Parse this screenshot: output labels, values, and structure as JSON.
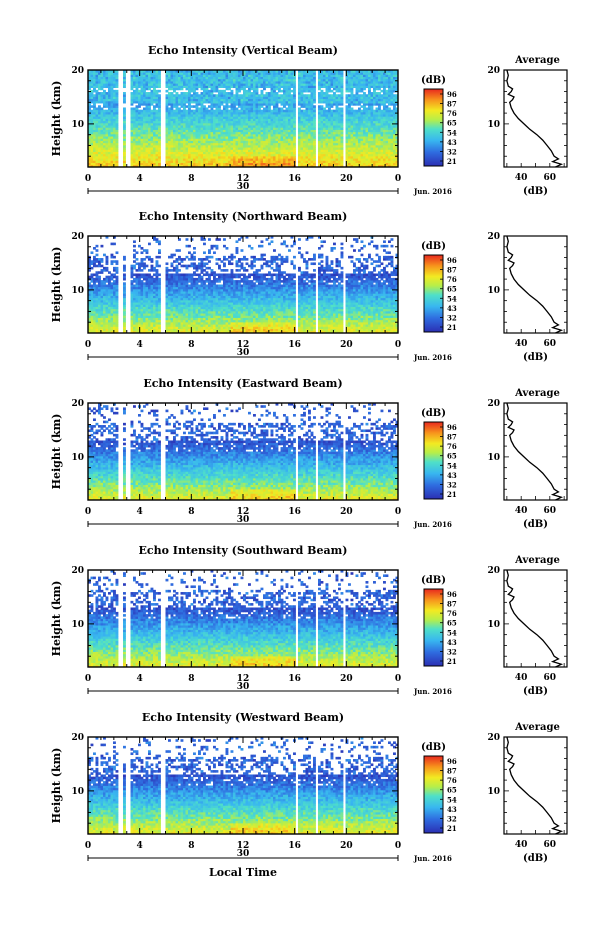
{
  "chart_data": [
    {
      "type": "heatmap",
      "title": "Echo Intensity (Vertical Beam)",
      "ylabel": "Height (km)",
      "xlim": [
        0,
        24
      ],
      "ylim": [
        2,
        20
      ],
      "x_ticks": [
        "0",
        "4",
        "8",
        "12",
        "16",
        "20",
        "0"
      ],
      "y_ticks": [
        "10",
        "20"
      ],
      "date_day": "30",
      "date_month": "Jun. 2016",
      "data_gaps_hours": [
        [
          2.3,
          2.7
        ],
        [
          2.9,
          3.3
        ],
        [
          5.7,
          6.0
        ],
        [
          16.0,
          16.3
        ],
        [
          17.6,
          17.9
        ],
        [
          19.7,
          20.0
        ]
      ],
      "colorbar": {
        "unit": "(dB)",
        "ticks": [
          "96",
          "87",
          "76",
          "65",
          "54",
          "43",
          "32",
          "21"
        ],
        "range": [
          21,
          96
        ]
      },
      "average": {
        "title": "Average",
        "xlabel": "(dB)",
        "x_ticks": [
          "40",
          "60"
        ],
        "y_ticks": [
          "10",
          "20"
        ],
        "xlim": [
          28,
          72
        ]
      }
    },
    {
      "type": "heatmap",
      "title": "Echo Intensity (Northward Beam)",
      "ylabel": "Height (km)",
      "xlim": [
        0,
        24
      ],
      "ylim": [
        2,
        20
      ],
      "x_ticks": [
        "0",
        "4",
        "8",
        "12",
        "16",
        "20",
        "0"
      ],
      "y_ticks": [
        "10",
        "20"
      ],
      "date_day": "30",
      "date_month": "Jun. 2016",
      "data_gaps_hours": [
        [
          2.3,
          2.7
        ],
        [
          2.9,
          3.3
        ],
        [
          5.7,
          6.0
        ],
        [
          16.0,
          16.3
        ],
        [
          17.6,
          17.9
        ],
        [
          19.7,
          20.0
        ]
      ],
      "colorbar": {
        "unit": "(dB)",
        "ticks": [
          "96",
          "87",
          "76",
          "65",
          "54",
          "43",
          "32",
          "21"
        ],
        "range": [
          21,
          96
        ]
      },
      "average": {
        "title": "",
        "xlabel": "(dB)",
        "x_ticks": [
          "40",
          "60"
        ],
        "y_ticks": [
          "10",
          "20"
        ],
        "xlim": [
          28,
          72
        ]
      }
    },
    {
      "type": "heatmap",
      "title": "Echo Intensity (Eastward Beam)",
      "ylabel": "Height (km)",
      "xlim": [
        0,
        24
      ],
      "ylim": [
        2,
        20
      ],
      "x_ticks": [
        "0",
        "4",
        "8",
        "12",
        "16",
        "20",
        "0"
      ],
      "y_ticks": [
        "10",
        "20"
      ],
      "date_day": "30",
      "date_month": "Jun. 2016",
      "data_gaps_hours": [
        [
          2.3,
          2.7
        ],
        [
          2.9,
          3.3
        ],
        [
          5.7,
          6.0
        ],
        [
          16.0,
          16.3
        ],
        [
          17.6,
          17.9
        ],
        [
          19.7,
          20.0
        ]
      ],
      "colorbar": {
        "unit": "(dB)",
        "ticks": [
          "96",
          "87",
          "76",
          "65",
          "54",
          "43",
          "32",
          "21"
        ],
        "range": [
          21,
          96
        ]
      },
      "average": {
        "title": "Average",
        "xlabel": "(dB)",
        "x_ticks": [
          "40",
          "60"
        ],
        "y_ticks": [
          "10",
          "20"
        ],
        "xlim": [
          28,
          72
        ]
      }
    },
    {
      "type": "heatmap",
      "title": "Echo Intensity (Southward Beam)",
      "ylabel": "Height (km)",
      "xlim": [
        0,
        24
      ],
      "ylim": [
        2,
        20
      ],
      "x_ticks": [
        "0",
        "4",
        "8",
        "12",
        "16",
        "20",
        "0"
      ],
      "y_ticks": [
        "10",
        "20"
      ],
      "date_day": "30",
      "date_month": "Jun. 2016",
      "data_gaps_hours": [
        [
          2.3,
          2.7
        ],
        [
          2.9,
          3.3
        ],
        [
          5.7,
          6.0
        ],
        [
          16.0,
          16.3
        ],
        [
          17.6,
          17.9
        ],
        [
          19.7,
          20.0
        ]
      ],
      "colorbar": {
        "unit": "(dB)",
        "ticks": [
          "96",
          "87",
          "76",
          "65",
          "54",
          "43",
          "32",
          "21"
        ],
        "range": [
          21,
          96
        ]
      },
      "average": {
        "title": "Average",
        "xlabel": "(dB)",
        "x_ticks": [
          "40",
          "60"
        ],
        "y_ticks": [
          "10",
          "20"
        ],
        "xlim": [
          28,
          72
        ]
      }
    },
    {
      "type": "heatmap",
      "title": "Echo Intensity (Westward Beam)",
      "ylabel": "Height (km)",
      "xlabel": "Local Time",
      "xlim": [
        0,
        24
      ],
      "ylim": [
        2,
        20
      ],
      "x_ticks": [
        "0",
        "4",
        "8",
        "12",
        "16",
        "20",
        "0"
      ],
      "y_ticks": [
        "10",
        "20"
      ],
      "date_day": "30",
      "date_month": "Jun. 2016",
      "data_gaps_hours": [
        [
          2.3,
          2.7
        ],
        [
          2.9,
          3.3
        ],
        [
          5.7,
          6.0
        ],
        [
          16.0,
          16.3
        ],
        [
          17.6,
          17.9
        ],
        [
          19.7,
          20.0
        ]
      ],
      "colorbar": {
        "unit": "(dB)",
        "ticks": [
          "96",
          "87",
          "76",
          "65",
          "54",
          "43",
          "32",
          "21"
        ],
        "range": [
          21,
          96
        ]
      },
      "average": {
        "title": "Average",
        "xlabel": "(dB)",
        "x_ticks": [
          "40",
          "60"
        ],
        "y_ticks": [
          "10",
          "20"
        ],
        "xlim": [
          28,
          72
        ]
      }
    }
  ],
  "average_profile": {
    "height_km": [
      2,
      2.5,
      3,
      3.5,
      4,
      5,
      6,
      7,
      8,
      9,
      10,
      11,
      12,
      13,
      14,
      14.5,
      15,
      15.5,
      16,
      16.5,
      17,
      18,
      19,
      20
    ],
    "value_db": [
      64,
      68,
      62,
      66,
      63,
      61,
      58,
      55,
      51,
      46,
      42,
      38,
      35,
      33,
      32,
      34,
      35,
      31,
      33,
      34,
      31,
      30,
      31,
      30
    ]
  }
}
